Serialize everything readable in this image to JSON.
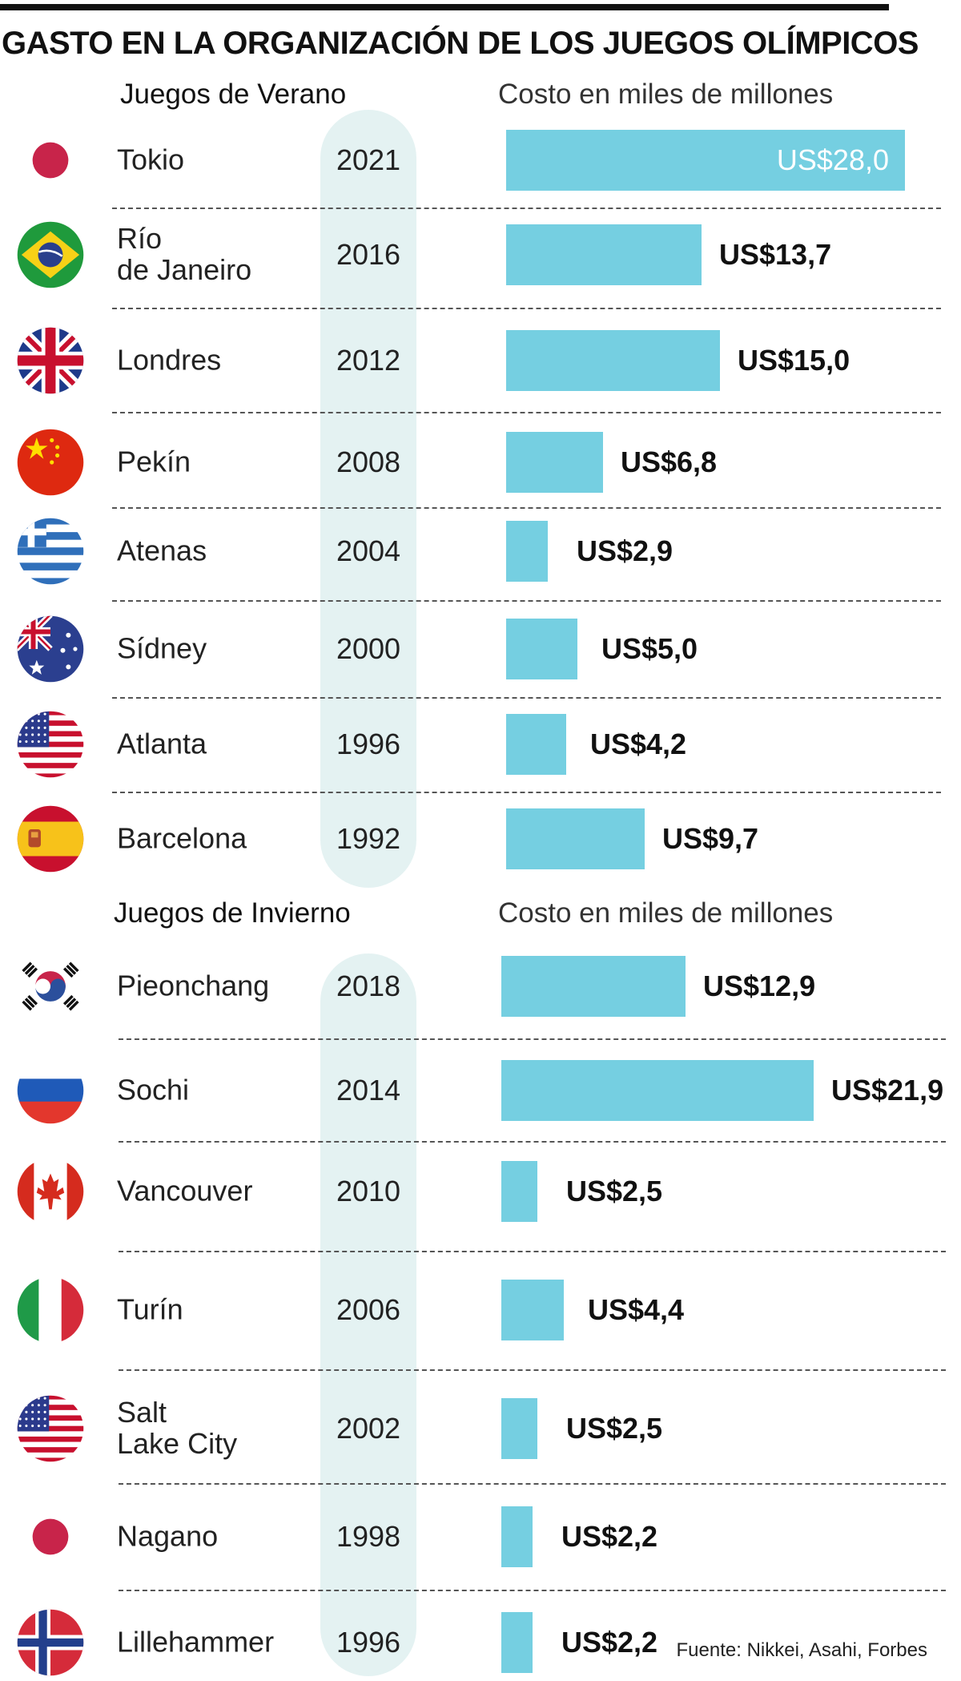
{
  "title": "GASTO EN LA ORGANIZACIÓN DE LOS JUEGOS OLÍMPICOS",
  "source": "Fuente: Nikkei, Asahi, Forbes",
  "colors": {
    "bar": "#75cfe1",
    "year_band": "#e4f2f2",
    "text": "#111111"
  },
  "sections": [
    {
      "title": "Juegos de Verano",
      "value_header": "Costo en miles de millones",
      "rows": [
        {
          "city": [
            "Tokio"
          ],
          "year": "2021",
          "value": 28.0,
          "label": "US$28,0",
          "flag": "japan-flag"
        },
        {
          "city": [
            "Río",
            "de Janeiro"
          ],
          "year": "2016",
          "value": 13.7,
          "label": "US$13,7",
          "flag": "brazil-flag"
        },
        {
          "city": [
            "Londres"
          ],
          "year": "2012",
          "value": 15.0,
          "label": "US$15,0",
          "flag": "uk-flag"
        },
        {
          "city": [
            "Pekín"
          ],
          "year": "2008",
          "value": 6.8,
          "label": "US$6,8",
          "flag": "china-flag"
        },
        {
          "city": [
            "Atenas"
          ],
          "year": "2004",
          "value": 2.9,
          "label": "US$2,9",
          "flag": "greece-flag"
        },
        {
          "city": [
            "Sídney"
          ],
          "year": "2000",
          "value": 5.0,
          "label": "US$5,0",
          "flag": "australia-flag"
        },
        {
          "city": [
            "Atlanta"
          ],
          "year": "1996",
          "value": 4.2,
          "label": "US$4,2",
          "flag": "usa-flag"
        },
        {
          "city": [
            "Barcelona"
          ],
          "year": "1992",
          "value": 9.7,
          "label": "US$9,7",
          "flag": "spain-flag"
        }
      ]
    },
    {
      "title": "Juegos de Invierno",
      "value_header": "Costo en miles de millones",
      "rows": [
        {
          "city": [
            "Pieonchang"
          ],
          "year": "2018",
          "value": 12.9,
          "label": "US$12,9",
          "flag": "south-korea-flag"
        },
        {
          "city": [
            "Sochi"
          ],
          "year": "2014",
          "value": 21.9,
          "label": "US$21,9",
          "flag": "russia-flag"
        },
        {
          "city": [
            "Vancouver"
          ],
          "year": "2010",
          "value": 2.5,
          "label": "US$2,5",
          "flag": "canada-flag"
        },
        {
          "city": [
            "Turín"
          ],
          "year": "2006",
          "value": 4.4,
          "label": "US$4,4",
          "flag": "italy-flag"
        },
        {
          "city": [
            "Salt",
            "Lake City"
          ],
          "year": "2002",
          "value": 2.5,
          "label": "US$2,5",
          "flag": "usa-flag"
        },
        {
          "city": [
            "Nagano"
          ],
          "year": "1998",
          "value": 2.2,
          "label": "US$2,2",
          "flag": "japan-flag"
        },
        {
          "city": [
            "Lillehammer"
          ],
          "year": "1996",
          "value": 2.2,
          "label": "US$2,2",
          "flag": "norway-flag"
        }
      ]
    }
  ],
  "chart_data": {
    "type": "bar",
    "orientation": "horizontal",
    "title": "GASTO EN LA ORGANIZACIÓN DE LOS JUEGOS OLÍMPICOS",
    "value_axis_label": "Costo en miles de millones",
    "series": [
      {
        "name": "Juegos de Verano",
        "categories": [
          "Tokio 2021",
          "Río de Janeiro 2016",
          "Londres 2012",
          "Pekín 2008",
          "Atenas 2004",
          "Sídney 2000",
          "Atlanta 1996",
          "Barcelona 1992"
        ],
        "values": [
          28.0,
          13.7,
          15.0,
          6.8,
          2.9,
          5.0,
          4.2,
          9.7
        ]
      },
      {
        "name": "Juegos de Invierno",
        "categories": [
          "Pieonchang 2018",
          "Sochi 2014",
          "Vancouver 2010",
          "Turín 2006",
          "Salt Lake City 2002",
          "Nagano 1998",
          "Lillehammer 1996"
        ],
        "values": [
          12.9,
          21.9,
          2.5,
          4.4,
          2.5,
          2.2,
          2.2
        ]
      }
    ],
    "grid": false,
    "legend": "none"
  }
}
